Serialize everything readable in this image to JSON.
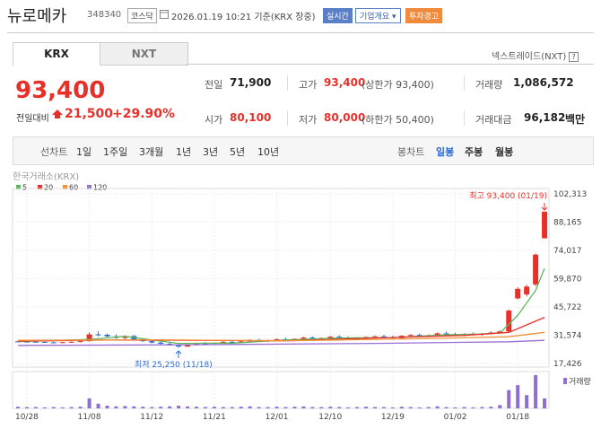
{
  "header": {
    "name": "뉴로메카",
    "code": "348340",
    "market": "코스닥",
    "timestamp": "2026.01.19 10:21 기준(KRX 장중)",
    "buttons": [
      "실시간",
      "기업개요",
      "투자경고"
    ]
  },
  "tabs": [
    "KRX",
    "NXT"
  ],
  "nxt_link": "넥스트레이드(NXT)",
  "quote": {
    "price": "93,400",
    "change_label": "전일대비",
    "change": "21,500",
    "change_pct": "+29.90%",
    "rows": [
      [
        {
          "label": "전일",
          "value": "71,900"
        },
        {
          "label": "고가",
          "value": "93,400",
          "note": "(상한가 93,400)"
        },
        {
          "label": "거래량",
          "value": "1,086,572"
        }
      ],
      [
        {
          "label": "시가",
          "value": "80,100"
        },
        {
          "label": "저가",
          "value": "80,000",
          "note": "(하한가 50,400)"
        },
        {
          "label": "거래대금",
          "value": "96,182",
          "unit": "백만"
        }
      ]
    ]
  },
  "periods": {
    "line_label": "선차트",
    "line": [
      "1일",
      "1주일",
      "3개월",
      "1년",
      "3년",
      "5년",
      "10년"
    ],
    "candle_label": "봉차트",
    "candle": [
      "일봉",
      "주봉",
      "월봉"
    ]
  },
  "chart_data": {
    "type": "candlestick",
    "source": "한국거래소(KRX)",
    "up_color": "#e8302a",
    "down_color": "#2a6ad8",
    "categories": [
      null,
      "10/28",
      null,
      null,
      null,
      null,
      null,
      null,
      "11/08",
      null,
      null,
      null,
      null,
      null,
      null,
      "11/12",
      null,
      null,
      null,
      null,
      null,
      null,
      "11/21",
      null,
      null,
      null,
      null,
      null,
      null,
      "12/01",
      null,
      null,
      null,
      null,
      null,
      "12/10",
      null,
      null,
      null,
      null,
      null,
      null,
      "12/19",
      null,
      null,
      null,
      null,
      null,
      null,
      "01/02",
      null,
      null,
      null,
      null,
      null,
      null,
      "01/18",
      null,
      null,
      null
    ],
    "candles": [
      [
        28500,
        28800,
        28200,
        28400
      ],
      [
        28400,
        28700,
        28100,
        28300
      ],
      [
        28300,
        28600,
        28000,
        28200
      ],
      [
        28200,
        28500,
        27800,
        28000
      ],
      [
        28000,
        28400,
        27700,
        27900
      ],
      [
        27900,
        28300,
        27600,
        28100
      ],
      [
        28100,
        28500,
        27800,
        28300
      ],
      [
        28300,
        28800,
        28000,
        28600
      ],
      [
        28600,
        33000,
        28400,
        32000
      ],
      [
        32000,
        33500,
        31000,
        31800
      ],
      [
        31800,
        32500,
        30500,
        31000
      ],
      [
        31000,
        32000,
        29800,
        30200
      ],
      [
        30200,
        31500,
        29500,
        31200
      ],
      [
        31200,
        31600,
        29000,
        29400
      ],
      [
        29400,
        30000,
        28300,
        28600
      ],
      [
        28600,
        29200,
        27600,
        27900
      ],
      [
        27900,
        28400,
        27000,
        27300
      ],
      [
        27300,
        27800,
        26300,
        26600
      ],
      [
        26600,
        27000,
        25250,
        25900
      ],
      [
        25900,
        27200,
        25600,
        27000
      ],
      [
        27000,
        27800,
        26500,
        27500
      ],
      [
        27500,
        28200,
        27000,
        27300
      ],
      [
        27300,
        28000,
        26800,
        27800
      ],
      [
        27800,
        28600,
        27400,
        28300
      ],
      [
        28300,
        29200,
        27900,
        28000
      ],
      [
        28000,
        28700,
        27600,
        28500
      ],
      [
        28500,
        29500,
        28200,
        29200
      ],
      [
        29200,
        29800,
        28600,
        28900
      ],
      [
        28900,
        29400,
        28300,
        29100
      ],
      [
        29100,
        29900,
        28700,
        29600
      ],
      [
        29600,
        30300,
        29000,
        29300
      ],
      [
        29300,
        30000,
        28800,
        29800
      ],
      [
        29800,
        30800,
        29400,
        30400
      ],
      [
        30400,
        31000,
        29600,
        29900
      ],
      [
        29900,
        30500,
        29200,
        30200
      ],
      [
        30200,
        31200,
        29800,
        30800
      ],
      [
        30800,
        31500,
        30000,
        30300
      ],
      [
        30300,
        30900,
        29700,
        30000
      ],
      [
        30000,
        30600,
        29300,
        29700
      ],
      [
        29700,
        31000,
        29400,
        30700
      ],
      [
        30700,
        31400,
        30100,
        31000
      ],
      [
        31000,
        31800,
        30400,
        30600
      ],
      [
        30600,
        31300,
        29800,
        30100
      ],
      [
        30100,
        31600,
        29900,
        31300
      ],
      [
        31300,
        32200,
        30800,
        31700
      ],
      [
        31700,
        32400,
        31000,
        31200
      ],
      [
        31200,
        32000,
        30600,
        31600
      ],
      [
        31600,
        33000,
        31200,
        32500
      ],
      [
        32500,
        33400,
        31800,
        32100
      ],
      [
        32100,
        32800,
        31400,
        31800
      ],
      [
        31800,
        32600,
        31200,
        32300
      ],
      [
        32300,
        33000,
        31600,
        31900
      ],
      [
        31900,
        32700,
        31300,
        32400
      ],
      [
        32400,
        33500,
        32000,
        32900
      ],
      [
        32900,
        34000,
        32400,
        33500
      ],
      [
        33500,
        44500,
        33200,
        43900
      ],
      [
        50000,
        55600,
        49500,
        54800
      ],
      [
        52000,
        56800,
        51000,
        55900
      ],
      [
        57000,
        72500,
        56000,
        71900
      ],
      [
        80100,
        93400,
        80000,
        93400
      ]
    ],
    "ylim": [
      17426,
      102313
    ],
    "yticks": [
      {
        "value": 17426,
        "label": "17,426"
      },
      {
        "value": 31574,
        "label": "31,574"
      },
      {
        "value": 45722,
        "label": "45,722"
      },
      {
        "value": 59870,
        "label": "59,870"
      },
      {
        "value": 74017,
        "label": "74,017"
      },
      {
        "value": 88165,
        "label": "88,165"
      },
      {
        "value": 102313,
        "label": "102,313"
      }
    ],
    "grid": true,
    "moving_averages": [
      {
        "name": "5",
        "color": "#5cb85c",
        "x": [
          0,
          8,
          12,
          18,
          24,
          30,
          36,
          42,
          48,
          52,
          54,
          56,
          58,
          59
        ],
        "values": [
          28400,
          29500,
          31000,
          27500,
          27600,
          29200,
          30200,
          30400,
          31800,
          32200,
          32700,
          41500,
          54000,
          65000
        ]
      },
      {
        "name": "20",
        "color": "#e8302a",
        "x": [
          0,
          10,
          20,
          30,
          40,
          50,
          55,
          59
        ],
        "values": [
          28600,
          29200,
          29000,
          28800,
          30200,
          31500,
          33000,
          40500
        ]
      },
      {
        "name": "60",
        "color": "#f0903a",
        "x": [
          0,
          15,
          30,
          45,
          55,
          59
        ],
        "values": [
          29000,
          29300,
          28800,
          29800,
          30800,
          33000
        ]
      },
      {
        "name": "120",
        "color": "#9b6fd6",
        "x": [
          0,
          20,
          40,
          55,
          59
        ],
        "values": [
          26500,
          26800,
          27500,
          28300,
          29000
        ]
      }
    ],
    "high_note": "최고 93,400 (01/19)",
    "low_note": "최저 25,250 (11/18)",
    "volume": {
      "name": "거래량",
      "color": "#8e6fcf",
      "ylim": [
        0,
        100
      ],
      "values": [
        5,
        4,
        4,
        3,
        4,
        3,
        4,
        5,
        30,
        14,
        8,
        6,
        7,
        6,
        5,
        4,
        5,
        6,
        8,
        6,
        5,
        4,
        5,
        4,
        4,
        5,
        6,
        4,
        4,
        5,
        4,
        5,
        6,
        4,
        4,
        5,
        4,
        3,
        4,
        5,
        4,
        4,
        3,
        5,
        4,
        3,
        4,
        6,
        4,
        3,
        4,
        3,
        4,
        5,
        10,
        55,
        70,
        40,
        100,
        30
      ]
    }
  }
}
